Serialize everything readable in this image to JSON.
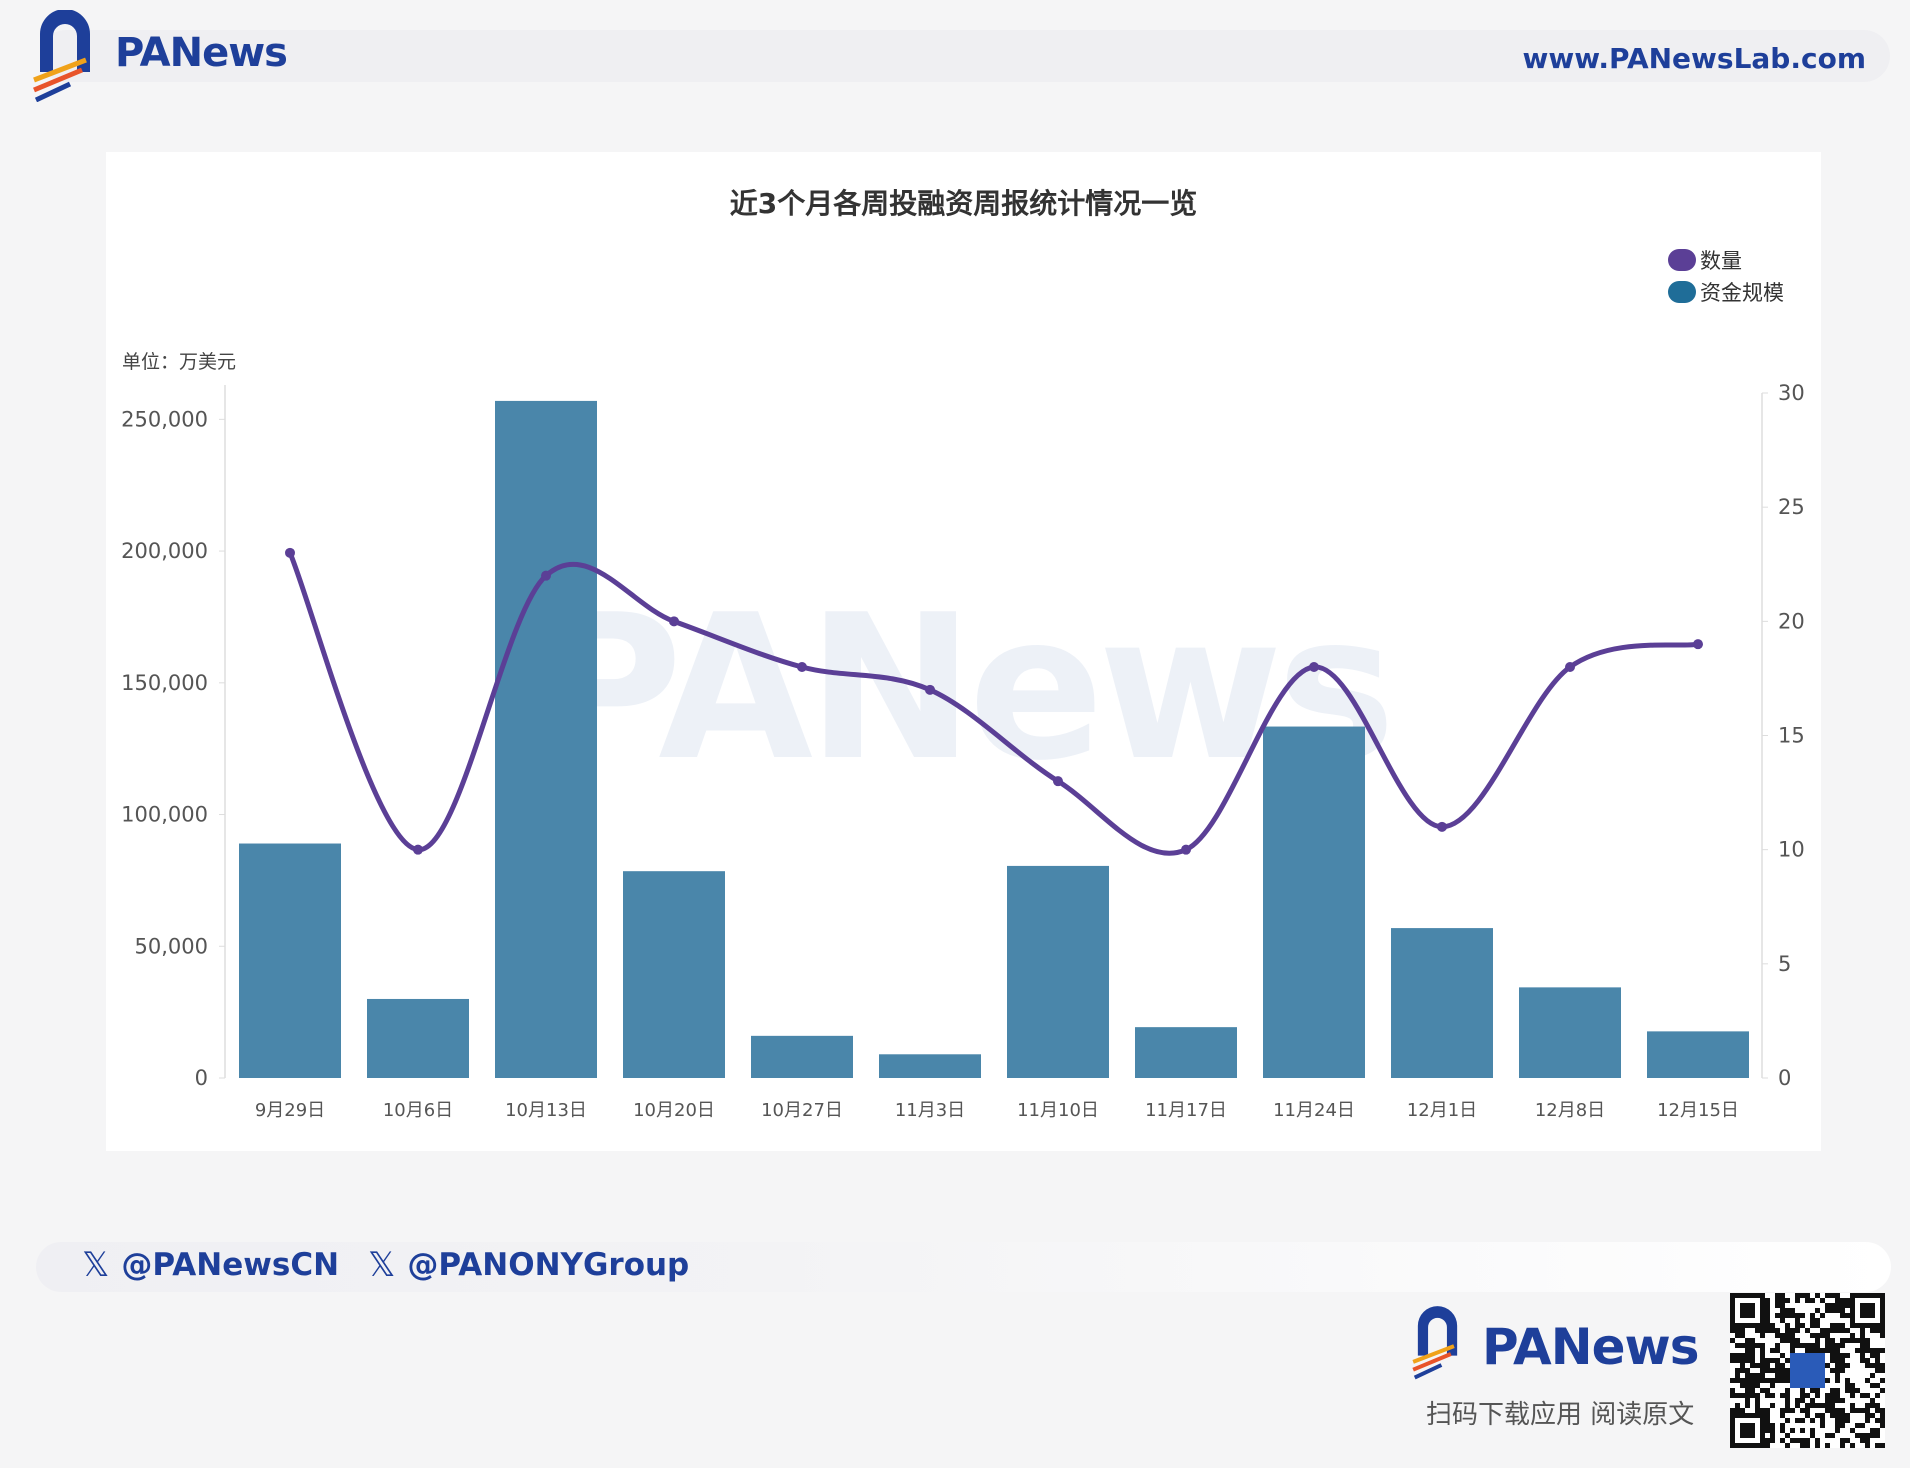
{
  "header": {
    "brand": "PANews",
    "site": "www.PANewsLab.com"
  },
  "footer": {
    "handles": [
      "@PANewsCN",
      "@PANONYGroup"
    ],
    "brand": "PANews",
    "scan_text": "扫码下载应用  阅读原文"
  },
  "colors": {
    "bar": "#4a86aa",
    "line": "#5b3f96",
    "brand": "#1e3f9a"
  },
  "chart_data": {
    "type": "bar+line",
    "title": "近3个月各周投融资周报统计情况一览",
    "unit_label": "单位：万美元",
    "legend_position": "top-right",
    "categories": [
      "9月29日",
      "10月6日",
      "10月13日",
      "10月20日",
      "10月27日",
      "11月3日",
      "11月10日",
      "11月17日",
      "11月24日",
      "12月1日",
      "12月8日",
      "12月15日"
    ],
    "series": [
      {
        "name": "数量",
        "type": "line",
        "axis": "right",
        "color": "#5b3f96",
        "values": [
          23,
          10,
          22,
          20,
          18,
          17,
          13,
          10,
          18,
          11,
          18,
          19
        ]
      },
      {
        "name": "资金规模",
        "type": "bar",
        "axis": "left",
        "color": "#4a86aa",
        "values": [
          89000,
          30000,
          257000,
          78500,
          16000,
          9000,
          80500,
          19300,
          133400,
          56900,
          34400,
          17700
        ]
      }
    ],
    "left_axis": {
      "ticks": [
        "0",
        "50,000",
        "100,000",
        "150,000",
        "200,000",
        "250,000"
      ],
      "ylim": [
        0,
        260000
      ]
    },
    "right_axis": {
      "ticks": [
        "0",
        "5",
        "10",
        "15",
        "20",
        "25",
        "30"
      ],
      "ylim": [
        0,
        30
      ]
    },
    "grid": false
  }
}
